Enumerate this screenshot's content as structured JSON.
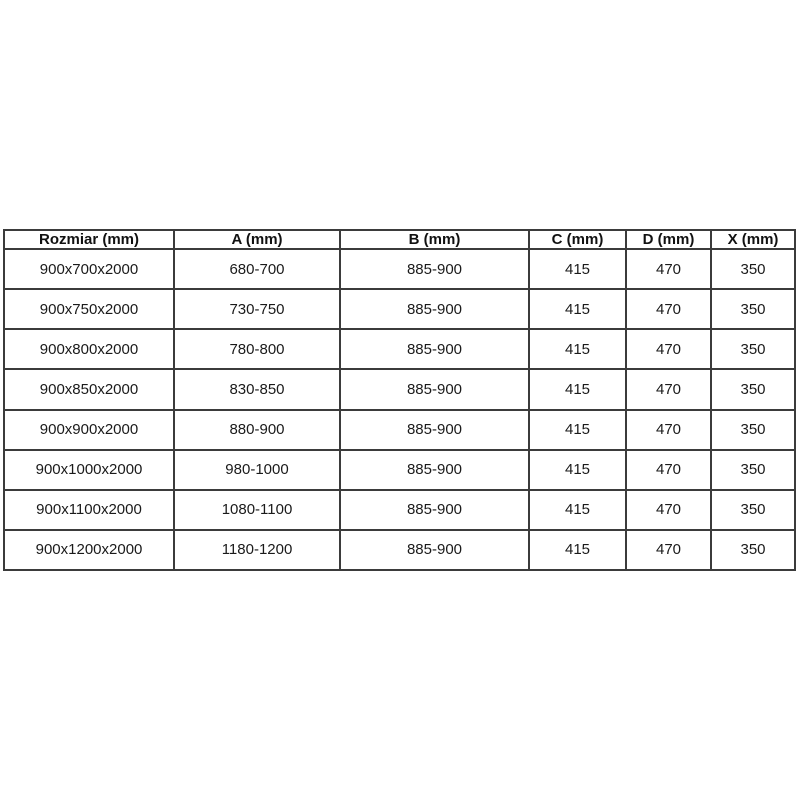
{
  "page": {
    "background": "#ffffff"
  },
  "table": {
    "border_color": "#3b3b3b",
    "text_color": "#1a1a1a",
    "headers": [
      "Rozmiar (mm)",
      "A (mm)",
      "B (mm)",
      "C (mm)",
      "D (mm)",
      "X (mm)"
    ],
    "rows": [
      [
        "900x700x2000",
        "680-700",
        "885-900",
        "415",
        "470",
        "350"
      ],
      [
        "900x750x2000",
        "730-750",
        "885-900",
        "415",
        "470",
        "350"
      ],
      [
        "900x800x2000",
        "780-800",
        "885-900",
        "415",
        "470",
        "350"
      ],
      [
        "900x850x2000",
        "830-850",
        "885-900",
        "415",
        "470",
        "350"
      ],
      [
        "900x900x2000",
        "880-900",
        "885-900",
        "415",
        "470",
        "350"
      ],
      [
        "900x1000x2000",
        "980-1000",
        "885-900",
        "415",
        "470",
        "350"
      ],
      [
        "900x1100x2000",
        "1080-1100",
        "885-900",
        "415",
        "470",
        "350"
      ],
      [
        "900x1200x2000",
        "1180-1200",
        "885-900",
        "415",
        "470",
        "350"
      ]
    ]
  },
  "chart_data": {
    "type": "table",
    "title": "",
    "columns": [
      "Rozmiar (mm)",
      "A (mm)",
      "B (mm)",
      "C (mm)",
      "D (mm)",
      "X (mm)"
    ],
    "rows": [
      [
        "900x700x2000",
        "680-700",
        "885-900",
        "415",
        "470",
        "350"
      ],
      [
        "900x750x2000",
        "730-750",
        "885-900",
        "415",
        "470",
        "350"
      ],
      [
        "900x800x2000",
        "780-800",
        "885-900",
        "415",
        "470",
        "350"
      ],
      [
        "900x850x2000",
        "830-850",
        "885-900",
        "415",
        "470",
        "350"
      ],
      [
        "900x900x2000",
        "880-900",
        "885-900",
        "415",
        "470",
        "350"
      ],
      [
        "900x1000x2000",
        "980-1000",
        "885-900",
        "415",
        "470",
        "350"
      ],
      [
        "900x1100x2000",
        "1080-1100",
        "885-900",
        "415",
        "470",
        "350"
      ],
      [
        "900x1200x2000",
        "1180-1200",
        "885-900",
        "415",
        "470",
        "350"
      ]
    ]
  }
}
